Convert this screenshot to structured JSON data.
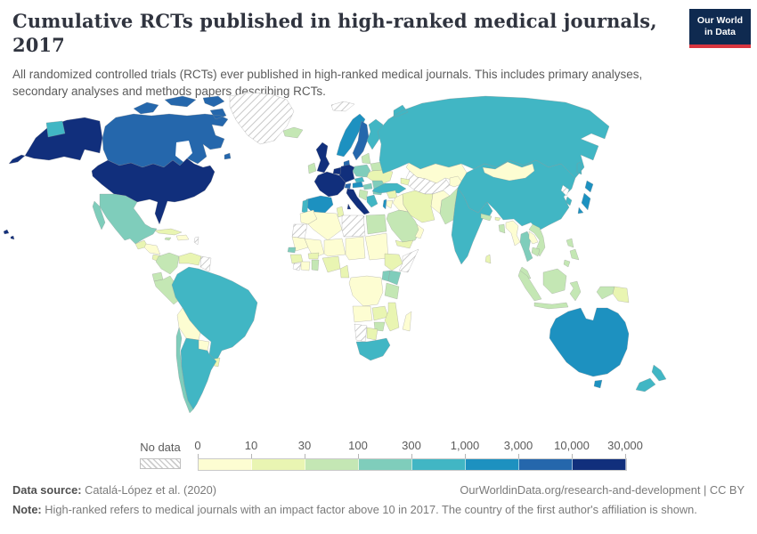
{
  "header": {
    "title": "Cumulative RCTs published in high-ranked medical journals, 2017",
    "subtitle": "All randomized controlled trials (RCTs) ever published in high-ranked medical journals. This includes primary analyses, secondary analyses and methods papers describing RCTs."
  },
  "logo": {
    "line1": "Our World",
    "line2": "in Data",
    "bg": "#0f2a50",
    "accent": "#d8353f"
  },
  "legend": {
    "no_data_label": "No data",
    "ticks": [
      "0",
      "10",
      "30",
      "100",
      "300",
      "1,000",
      "3,000",
      "10,000",
      "30,000"
    ]
  },
  "footer": {
    "source_label": "Data source:",
    "source_value": " Catalá-López et al. (2020)",
    "link": "OurWorldinData.org/research-and-development",
    "license": " | CC BY",
    "note_label": "Note:",
    "note_value": " High-ranked refers to medical journals with an impact factor above 10 in 2017. The country of the first author's affiliation is shown."
  },
  "chart_data": {
    "type": "choropleth",
    "title": "Cumulative RCTs published in high-ranked medical journals",
    "year": 2017,
    "unit": "cumulative RCTs (all randomized controlled trials ever published)",
    "legend_ticks": [
      "0",
      "10",
      "30",
      "100",
      "300",
      "1,000",
      "3,000",
      "10,000",
      "30,000"
    ],
    "bins": [
      {
        "label": "0-10",
        "color": "#fdfdd2"
      },
      {
        "label": "10-30",
        "color": "#e9f5b2"
      },
      {
        "label": "30-100",
        "color": "#c4e7b4"
      },
      {
        "label": "100-300",
        "color": "#7fcdbb"
      },
      {
        "label": "300-1,000",
        "color": "#41b6c4"
      },
      {
        "label": "1,000-3,000",
        "color": "#1d91c0"
      },
      {
        "label": "3,000-10,000",
        "color": "#2567ac"
      },
      {
        "label": "10,000-30,000",
        "color": "#112f7c"
      }
    ],
    "no_data": {
      "label": "No data"
    },
    "country_bins": {
      "united-states": 8,
      "canada": 7,
      "greenland": 0,
      "mexico": 4,
      "guatemala": 2,
      "honduras-nicaragua": 1,
      "costa-rica-panama": 2,
      "cuba": 2,
      "jamaica": 3,
      "hispaniola": 1,
      "lesser-antilles": 0,
      "colombia": 3,
      "venezuela": 2,
      "guyanas": 0,
      "ecuador": 3,
      "peru": 3,
      "brazil": 5,
      "bolivia": 1,
      "paraguay": 1,
      "uruguay": 2,
      "chile": 4,
      "argentina": 5,
      "iceland": 3,
      "ireland": 3,
      "united-kingdom": 8,
      "portugal": 5,
      "spain": 6,
      "france": 8,
      "benelux": 8,
      "germany": 8,
      "switzerland": 7,
      "austria": 6,
      "czechia": 5,
      "poland": 4,
      "denmark": 7,
      "norway": 6,
      "sweden": 7,
      "finland": 5,
      "baltics": 3,
      "belarus": 3,
      "ukraine": 2,
      "italy": 8,
      "hungary": 4,
      "romania": 4,
      "balkans": 3,
      "bulgaria": 4,
      "greece": 5,
      "svalbard": 0,
      "russia": 5,
      "kazakhstan": 1,
      "central-asia": 0,
      "kyrgyzstan-tajikistan": 1,
      "caucasus": 2,
      "turkey": 5,
      "syria": 2,
      "israel": 6,
      "jordan": 1,
      "iraq": 1,
      "iran": 2,
      "saudi-arabia": 3,
      "yemen": 2,
      "oman": 1,
      "afghanistan": 1,
      "pakistan": 3,
      "india": 5,
      "nepal": 3,
      "bhutan": 2,
      "bangladesh": 3,
      "sri-lanka": 2,
      "myanmar": 1,
      "thailand": 4,
      "laos": 1,
      "vietnam": 3,
      "cambodia": 3,
      "china": 5,
      "mongolia": 1,
      "north-korea": 0,
      "south-korea": 5,
      "japan": 6,
      "philippines": 3,
      "malaysia": 3,
      "indonesia": 3,
      "papua-new-guinea": 2,
      "morocco": 1,
      "western-sahara": 0,
      "algeria": 1,
      "tunisia": 2,
      "libya": 0,
      "egypt": 3,
      "mauritania": 1,
      "senegal": 4,
      "guinea": 2,
      "liberia": 0,
      "ivory-coast": 1,
      "ghana": 3,
      "burkina-faso": 2,
      "mali": 1,
      "niger": 1,
      "nigeria": 2,
      "chad": 1,
      "sudan": 1,
      "cameroon": 2,
      "ethiopia": 2,
      "somalia": 0,
      "kenya": 4,
      "uganda": 4,
      "drc": 1,
      "tanzania": 3,
      "angola": 1,
      "zambia": 2,
      "mozambique": 2,
      "zimbabwe": 3,
      "botswana": 2,
      "namibia": 0,
      "south-africa": 5,
      "madagascar": 1,
      "australia": 6,
      "new-zealand": 5
    }
  }
}
